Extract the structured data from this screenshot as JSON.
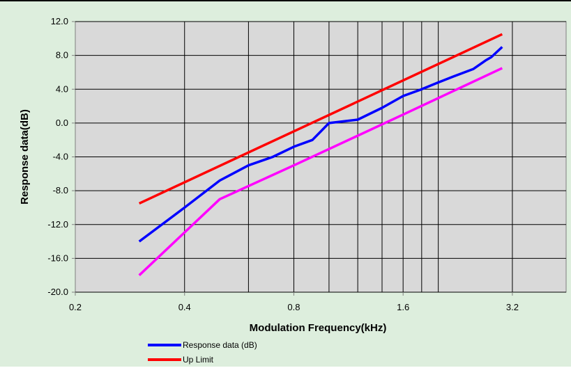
{
  "chart_data": {
    "type": "line",
    "xlabel": "Modulation Frequency(kHz)",
    "ylabel": "Response data(dB)",
    "x_scale": "log2",
    "xlim": [
      0.2,
      4.5
    ],
    "ylim": [
      -20,
      12
    ],
    "x_ticks": [
      {
        "value": 0.2,
        "label": "0.2"
      },
      {
        "value": 0.4,
        "label": "0.4"
      },
      {
        "value": 0.8,
        "label": "0.8"
      },
      {
        "value": 1.6,
        "label": "1.6"
      },
      {
        "value": 3.2,
        "label": "3.2"
      }
    ],
    "x_gridlines": [
      0.4,
      0.6,
      0.8,
      1.0,
      1.2,
      1.4,
      1.6,
      1.8,
      2.0,
      3.2
    ],
    "y_ticks": [
      {
        "value": 12,
        "label": "12.0"
      },
      {
        "value": 8,
        "label": "8.0"
      },
      {
        "value": 4,
        "label": "4.0"
      },
      {
        "value": 0,
        "label": "0.0"
      },
      {
        "value": -4,
        "label": "-4.0"
      },
      {
        "value": -8,
        "label": "-8.0"
      },
      {
        "value": -12,
        "label": "-12.0"
      },
      {
        "value": -16,
        "label": "-16.0"
      },
      {
        "value": -20,
        "label": "-20.0"
      }
    ],
    "grid": true,
    "legend_position": "bottom",
    "series": [
      {
        "name": "Response data (dB)",
        "color": "#0000ff",
        "x": [
          0.3,
          0.4,
          0.5,
          0.6,
          0.7,
          0.8,
          0.9,
          1.0,
          1.2,
          1.4,
          1.6,
          1.8,
          2.0,
          2.2,
          2.5,
          2.7,
          2.8,
          3.0
        ],
        "y": [
          -14,
          -10,
          -6.8,
          -5,
          -4,
          -2.8,
          -2,
          0,
          0.4,
          1.8,
          3.2,
          4,
          4.8,
          5.5,
          6.4,
          7.4,
          7.8,
          9
        ]
      },
      {
        "name": "Up Limit",
        "color": "#ff0000",
        "x": [
          0.3,
          3.0
        ],
        "y": [
          -9.5,
          10.5
        ]
      },
      {
        "color": "#ff00ff",
        "x": [
          0.3,
          0.5,
          0.8,
          1.6,
          3.0
        ],
        "y": [
          -18,
          -9,
          -5,
          1,
          6.5
        ]
      }
    ]
  }
}
